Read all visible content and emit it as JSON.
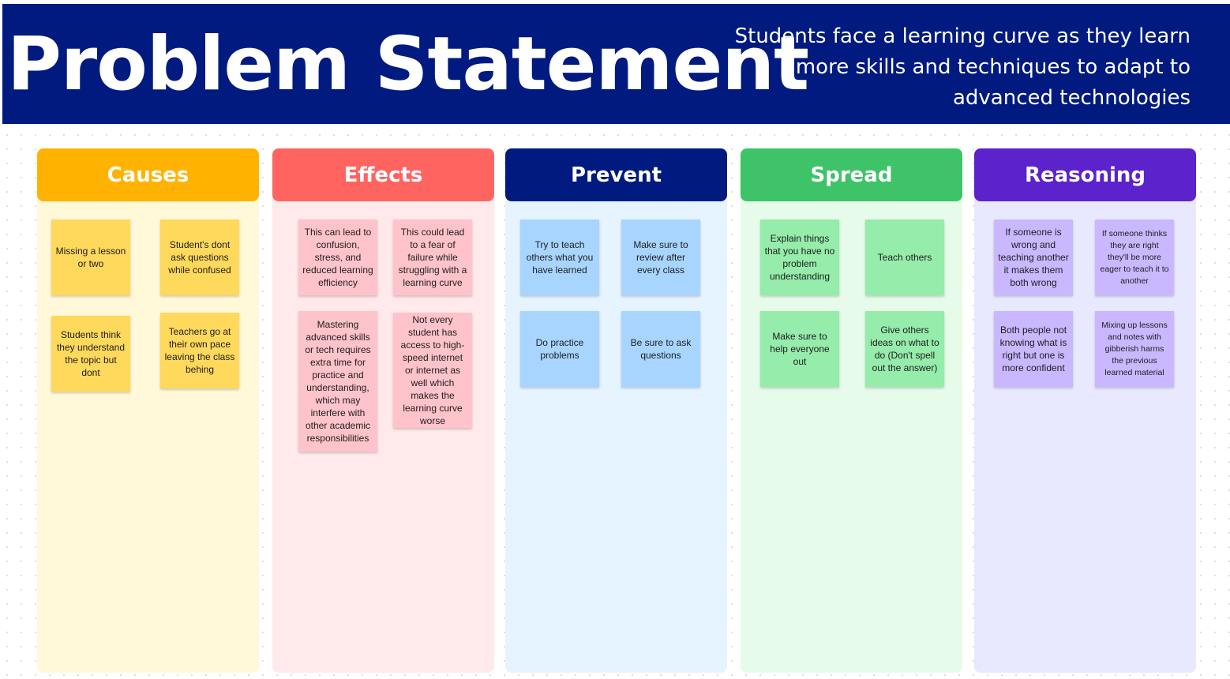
{
  "header": {
    "title": "Problem Statement",
    "subtitle": "Students face a learning curve as they learn more skills and techniques to adapt to advanced technologies"
  },
  "colors": {
    "banner": "#001a80",
    "causes": "#ffb300",
    "effects": "#ff6460",
    "prevent": "#001a80",
    "spread": "#3ec368",
    "reasoning": "#5c22cc"
  },
  "columns": {
    "causes": {
      "title": "Causes",
      "notes": [
        "Missing a lesson or two",
        "Student's dont ask questions while confused",
        "Students think they understand the topic but dont",
        "Teachers go at their own pace leaving the class behing"
      ]
    },
    "effects": {
      "title": "Effects",
      "notes": [
        "This can lead to confusion, stress, and reduced learning efficiency",
        "This could lead to a fear of failure while struggling with a learning curve",
        "Mastering advanced skills or tech requires extra time for practice and understanding, which may interfere with other academic responsibilities",
        "Not every student has access to high-speed internet or internet as well which makes the learning curve worse"
      ]
    },
    "prevent": {
      "title": "Prevent",
      "notes": [
        "Try to teach others what you have learned",
        "Make sure to review after every class",
        "Do practice problems",
        "Be sure to ask questions"
      ]
    },
    "spread": {
      "title": "Spread",
      "notes": [
        "Explain things that you have no problem understanding",
        "Teach others",
        "Make sure to help everyone out",
        "Give others ideas on what to do (Don't spell out the answer)"
      ]
    },
    "reasoning": {
      "title": "Reasoning",
      "notes": [
        "If someone is wrong and teaching another it makes them both wrong",
        "If someone thinks they are right they'll be more eager to teach it to another",
        "Both people not knowing what is right but one is more confident",
        "Mixing up lessons and notes with gibberish harms the previous learned material"
      ]
    }
  }
}
